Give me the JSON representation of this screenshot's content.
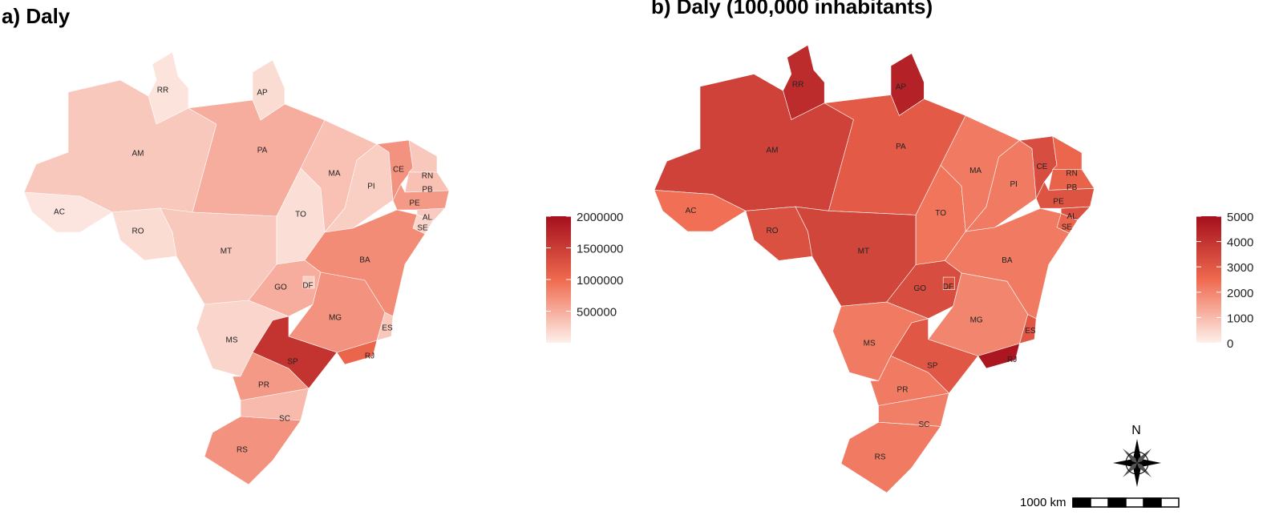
{
  "states": [
    "RR",
    "AP",
    "AM",
    "AC",
    "RO",
    "PA",
    "MT",
    "TO",
    "MA",
    "PI",
    "CE",
    "RN",
    "PB",
    "PE",
    "AL",
    "SE",
    "BA",
    "GO",
    "DF",
    "MG",
    "ES",
    "MS",
    "SP",
    "RJ",
    "PR",
    "SC",
    "RS"
  ],
  "panels": [
    {
      "title": "a) Daly",
      "color_scale": [
        "#fdf0ea",
        "#ef6a4f",
        "#a50f1c"
      ],
      "lim": [
        0,
        2000000
      ],
      "ticks": [
        500000,
        1000000,
        1500000,
        2000000
      ],
      "values": [
        100000,
        150000,
        300000,
        80000,
        150000,
        500000,
        300000,
        130000,
        350000,
        250000,
        700000,
        300000,
        350000,
        650000,
        280000,
        200000,
        750000,
        500000,
        250000,
        700000,
        300000,
        200000,
        1600000,
        1050000,
        650000,
        400000,
        700000
      ]
    },
    {
      "title": "b) Daly (100,000 inhabitants)",
      "color_scale": [
        "#fdf0ea",
        "#ef6a4f",
        "#a50f1c"
      ],
      "lim": [
        0,
        5000
      ],
      "ticks": [
        0,
        1000,
        2000,
        3000,
        4000,
        5000
      ],
      "values": [
        4200,
        4500,
        3600,
        2400,
        3200,
        2900,
        3500,
        2300,
        2200,
        2200,
        3300,
        2600,
        2700,
        3100,
        3200,
        2600,
        2200,
        3300,
        3100,
        2000,
        3000,
        2200,
        3000,
        4800,
        2200,
        2100,
        2200
      ]
    }
  ],
  "north_label": "N",
  "scale_label": "1000 km"
}
